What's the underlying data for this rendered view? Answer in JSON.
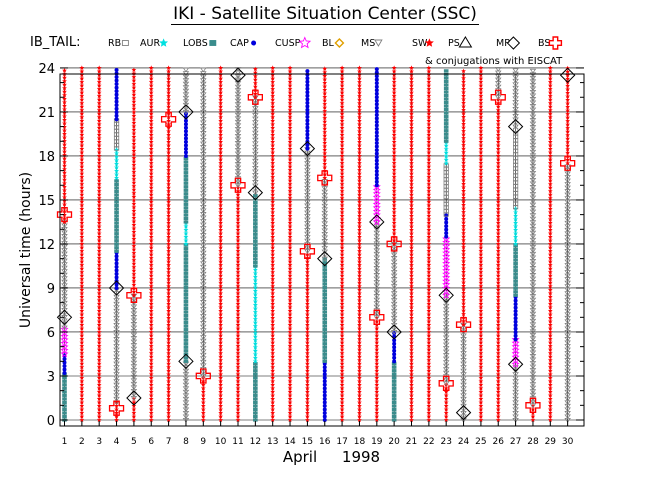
{
  "title": "IKI - Satellite Situation Center (SSC)",
  "legend": {
    "prefix": "IB_TAIL:",
    "items": [
      {
        "label": "RB",
        "symbol": "square",
        "color": "#808080"
      },
      {
        "label": "AUR",
        "symbol": "star",
        "color": "#00e0e0"
      },
      {
        "label": "LOBS",
        "symbol": "square",
        "color": "#3a8c8c"
      },
      {
        "label": "CAP",
        "symbol": "dot",
        "color": "#0000dd"
      },
      {
        "label": "CUSP",
        "symbol": "star",
        "color": "#ff00ff"
      },
      {
        "label": "BL",
        "symbol": "diamond",
        "color": "#e0a000"
      },
      {
        "label": "MS",
        "symbol": "triangle-down",
        "color": "#808080"
      },
      {
        "label": "SW",
        "symbol": "star",
        "color": "#ff0000"
      },
      {
        "label": "PS",
        "symbol": "triangle",
        "color": "#000000"
      },
      {
        "label": "MP",
        "symbol": "diamond-open",
        "color": "#000000"
      },
      {
        "label": "BS",
        "symbol": "cross-open",
        "color": "#ff0000"
      }
    ],
    "note": "& conjugations with EISCAT"
  },
  "chart_data": {
    "type": "scatter",
    "ylabel": "Universal time (hours)",
    "xlabel": "April",
    "xlabel_year": "1998",
    "x_ticks": [
      1,
      2,
      3,
      4,
      5,
      6,
      7,
      8,
      9,
      10,
      11,
      12,
      13,
      14,
      15,
      16,
      17,
      18,
      19,
      20,
      21,
      22,
      23,
      24,
      25,
      26,
      27,
      28,
      29,
      30
    ],
    "y_ticks": [
      0,
      3,
      6,
      9,
      12,
      15,
      18,
      21,
      24
    ],
    "xlim": [
      0.6,
      30.6
    ],
    "ylim": [
      -0.6,
      24.6
    ],
    "grid": true,
    "regions_by_day": [
      {
        "day": 1,
        "segments": [
          {
            "region": "LOBS",
            "from": 0,
            "to": 3.2
          },
          {
            "region": "CAP",
            "from": 3.2,
            "to": 4.5
          },
          {
            "region": "CUSP",
            "from": 4.5,
            "to": 6.3
          },
          {
            "region": "MS",
            "from": 6.3,
            "to": 13.5
          },
          {
            "region": "SW",
            "from": 13.5,
            "to": 24
          }
        ]
      },
      {
        "day": 2,
        "segments": [
          {
            "region": "SW",
            "from": 0,
            "to": 24
          }
        ]
      },
      {
        "day": 3,
        "segments": [
          {
            "region": "SW",
            "from": 0,
            "to": 24
          }
        ]
      },
      {
        "day": 4,
        "segments": [
          {
            "region": "SW",
            "from": 0,
            "to": 1.2
          },
          {
            "region": "MS",
            "from": 1.2,
            "to": 9
          },
          {
            "region": "CAP",
            "from": 9,
            "to": 11.5
          },
          {
            "region": "LOBS",
            "from": 11.5,
            "to": 16.5
          },
          {
            "region": "AUR",
            "from": 16.5,
            "to": 18.5
          },
          {
            "region": "RB",
            "from": 18.5,
            "to": 20.5
          },
          {
            "region": "CAP",
            "from": 20.5,
            "to": 24
          }
        ]
      },
      {
        "day": 5,
        "segments": [
          {
            "region": "SW",
            "from": 0,
            "to": 1.5
          },
          {
            "region": "MS",
            "from": 1.5,
            "to": 8.5
          },
          {
            "region": "SW",
            "from": 8.5,
            "to": 24
          }
        ]
      },
      {
        "day": 6,
        "segments": [
          {
            "region": "SW",
            "from": 0,
            "to": 24
          }
        ]
      },
      {
        "day": 7,
        "segments": [
          {
            "region": "SW",
            "from": 0,
            "to": 24
          }
        ]
      },
      {
        "day": 8,
        "segments": [
          {
            "region": "MS",
            "from": 0,
            "to": 4
          },
          {
            "region": "LOBS",
            "from": 4,
            "to": 12
          },
          {
            "region": "AUR",
            "from": 12,
            "to": 13.5
          },
          {
            "region": "LOBS",
            "from": 13.5,
            "to": 18
          },
          {
            "region": "CAP",
            "from": 18,
            "to": 21
          },
          {
            "region": "MS",
            "from": 21,
            "to": 24
          }
        ]
      },
      {
        "day": 9,
        "segments": [
          {
            "region": "SW",
            "from": 0,
            "to": 3
          },
          {
            "region": "MS",
            "from": 3,
            "to": 24
          }
        ]
      },
      {
        "day": 10,
        "segments": [
          {
            "region": "SW",
            "from": 0,
            "to": 24
          }
        ]
      },
      {
        "day": 11,
        "segments": [
          {
            "region": "SW",
            "from": 0,
            "to": 16
          },
          {
            "region": "MS",
            "from": 16,
            "to": 24
          }
        ]
      },
      {
        "day": 12,
        "segments": [
          {
            "region": "LOBS",
            "from": 0,
            "to": 4
          },
          {
            "region": "AUR",
            "from": 4,
            "to": 10.5
          },
          {
            "region": "LOBS",
            "from": 10.5,
            "to": 15.5
          },
          {
            "region": "MS",
            "from": 15.5,
            "to": 22
          },
          {
            "region": "SW",
            "from": 22,
            "to": 24
          }
        ]
      },
      {
        "day": 13,
        "segments": [
          {
            "region": "SW",
            "from": 0,
            "to": 24
          }
        ]
      },
      {
        "day": 14,
        "segments": [
          {
            "region": "SW",
            "from": 0,
            "to": 24
          }
        ]
      },
      {
        "day": 15,
        "segments": [
          {
            "region": "SW",
            "from": 0,
            "to": 11.5
          },
          {
            "region": "MS",
            "from": 11.5,
            "to": 18.5
          },
          {
            "region": "CAP",
            "from": 18.5,
            "to": 24
          }
        ]
      },
      {
        "day": 16,
        "segments": [
          {
            "region": "CAP",
            "from": 0,
            "to": 4
          },
          {
            "region": "LOBS",
            "from": 4,
            "to": 11
          },
          {
            "region": "MS",
            "from": 11,
            "to": 16.5
          },
          {
            "region": "SW",
            "from": 16.5,
            "to": 24
          }
        ]
      },
      {
        "day": 17,
        "segments": [
          {
            "region": "SW",
            "from": 0,
            "to": 24
          }
        ]
      },
      {
        "day": 18,
        "segments": [
          {
            "region": "SW",
            "from": 0,
            "to": 24
          }
        ]
      },
      {
        "day": 19,
        "segments": [
          {
            "region": "SW",
            "from": 0,
            "to": 7
          },
          {
            "region": "MS",
            "from": 7,
            "to": 13.5
          },
          {
            "region": "CUSP",
            "from": 13.5,
            "to": 16
          },
          {
            "region": "CAP",
            "from": 16,
            "to": 24
          }
        ]
      },
      {
        "day": 20,
        "segments": [
          {
            "region": "LOBS",
            "from": 0,
            "to": 4
          },
          {
            "region": "CAP",
            "from": 4,
            "to": 6
          },
          {
            "region": "MS",
            "from": 6,
            "to": 12
          },
          {
            "region": "SW",
            "from": 12,
            "to": 24
          }
        ]
      },
      {
        "day": 21,
        "segments": [
          {
            "region": "SW",
            "from": 0,
            "to": 24
          }
        ]
      },
      {
        "day": 22,
        "segments": [
          {
            "region": "SW",
            "from": 0,
            "to": 24
          }
        ]
      },
      {
        "day": 23,
        "segments": [
          {
            "region": "SW",
            "from": 0,
            "to": 2.5
          },
          {
            "region": "MS",
            "from": 2.5,
            "to": 8.5
          },
          {
            "region": "CUSP",
            "from": 8.5,
            "to": 12.5
          },
          {
            "region": "CAP",
            "from": 12.5,
            "to": 14
          },
          {
            "region": "RB",
            "from": 14,
            "to": 17.5
          },
          {
            "region": "AUR",
            "from": 17.5,
            "to": 19
          },
          {
            "region": "LOBS",
            "from": 19,
            "to": 24
          }
        ]
      },
      {
        "day": 24,
        "segments": [
          {
            "region": "MS",
            "from": 0,
            "to": 6.5
          },
          {
            "region": "SW",
            "from": 6.5,
            "to": 24
          }
        ]
      },
      {
        "day": 25,
        "segments": [
          {
            "region": "SW",
            "from": 0,
            "to": 24
          }
        ]
      },
      {
        "day": 26,
        "segments": [
          {
            "region": "SW",
            "from": 0,
            "to": 22
          },
          {
            "region": "MS",
            "from": 22,
            "to": 24
          }
        ]
      },
      {
        "day": 27,
        "segments": [
          {
            "region": "MS",
            "from": 0,
            "to": 3.8
          },
          {
            "region": "CUSP",
            "from": 3.8,
            "to": 5.5
          },
          {
            "region": "CAP",
            "from": 5.5,
            "to": 8.5
          },
          {
            "region": "LOBS",
            "from": 8.5,
            "to": 12
          },
          {
            "region": "AUR",
            "from": 12,
            "to": 14.5
          },
          {
            "region": "RB",
            "from": 14.5,
            "to": 20
          },
          {
            "region": "MS",
            "from": 20,
            "to": 24
          }
        ]
      },
      {
        "day": 28,
        "segments": [
          {
            "region": "SW",
            "from": 0,
            "to": 1
          },
          {
            "region": "MS",
            "from": 1,
            "to": 24
          }
        ]
      },
      {
        "day": 29,
        "segments": [
          {
            "region": "SW",
            "from": 0,
            "to": 24
          }
        ]
      },
      {
        "day": 30,
        "segments": [
          {
            "region": "MS",
            "from": 0,
            "to": 17.5
          },
          {
            "region": "SW",
            "from": 17.5,
            "to": 24
          }
        ]
      }
    ],
    "crossings": [
      {
        "day": 1,
        "ut": 7,
        "type": "MP"
      },
      {
        "day": 1,
        "ut": 14,
        "type": "BS"
      },
      {
        "day": 4,
        "ut": 0.8,
        "type": "BS"
      },
      {
        "day": 4,
        "ut": 9,
        "type": "MP"
      },
      {
        "day": 5,
        "ut": 1.5,
        "type": "MP"
      },
      {
        "day": 5,
        "ut": 8.5,
        "type": "BS"
      },
      {
        "day": 7,
        "ut": 20.5,
        "type": "BS"
      },
      {
        "day": 8,
        "ut": 4,
        "type": "MP"
      },
      {
        "day": 8,
        "ut": 21,
        "type": "MP"
      },
      {
        "day": 9,
        "ut": 3,
        "type": "BS"
      },
      {
        "day": 11,
        "ut": 16,
        "type": "BS"
      },
      {
        "day": 11,
        "ut": 23.5,
        "type": "MP"
      },
      {
        "day": 12,
        "ut": 15.5,
        "type": "MP"
      },
      {
        "day": 12,
        "ut": 22,
        "type": "BS"
      },
      {
        "day": 15,
        "ut": 11.5,
        "type": "BS"
      },
      {
        "day": 15,
        "ut": 18.5,
        "type": "MP"
      },
      {
        "day": 16,
        "ut": 11,
        "type": "MP"
      },
      {
        "day": 16,
        "ut": 16.5,
        "type": "BS"
      },
      {
        "day": 19,
        "ut": 7,
        "type": "BS"
      },
      {
        "day": 19,
        "ut": 13.5,
        "type": "MP"
      },
      {
        "day": 20,
        "ut": 6,
        "type": "MP"
      },
      {
        "day": 20,
        "ut": 12,
        "type": "BS"
      },
      {
        "day": 23,
        "ut": 2.5,
        "type": "BS"
      },
      {
        "day": 23,
        "ut": 8.5,
        "type": "MP"
      },
      {
        "day": 24,
        "ut": 0.5,
        "type": "MP"
      },
      {
        "day": 24,
        "ut": 6.5,
        "type": "BS"
      },
      {
        "day": 26,
        "ut": 22,
        "type": "BS"
      },
      {
        "day": 27,
        "ut": 3.8,
        "type": "MP"
      },
      {
        "day": 27,
        "ut": 20,
        "type": "MP"
      },
      {
        "day": 28,
        "ut": 1,
        "type": "BS"
      },
      {
        "day": 30,
        "ut": 17.5,
        "type": "BS"
      },
      {
        "day": 30,
        "ut": 23.5,
        "type": "MP"
      }
    ]
  }
}
